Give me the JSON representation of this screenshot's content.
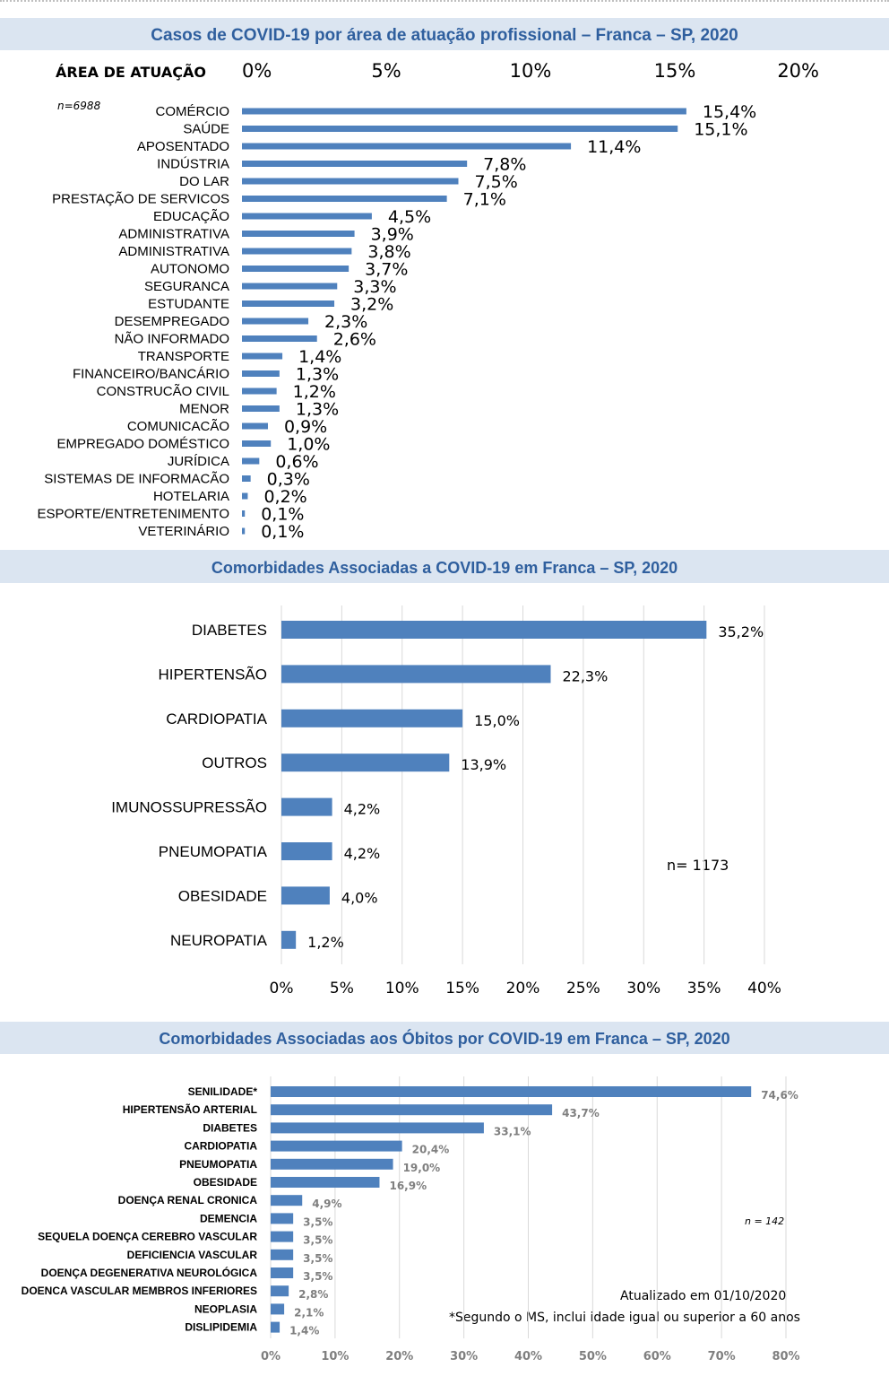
{
  "sections": {
    "professions_title": "Casos de COVID-19 por área de atuação profissional – Franca – SP, 2020",
    "comorbidities_title": "Comorbidades Associadas a COVID-19 em Franca – SP, 2020",
    "deaths_title": "Comorbidades Associadas aos Óbitos por COVID-19 em Franca – SP, 2020"
  },
  "notes": {
    "professions_axis_header": "ÁREA DE ATUAÇÃO",
    "professions_n": "n=6988",
    "comorbidities_n": "n= 1173",
    "deaths_n": "n = 142",
    "updated": "Atualizado em  01/10/2020",
    "footnote": "*Segundo o MS, inclui idade igual ou superior a 60 anos"
  },
  "colors": {
    "bar": "#4f81bd",
    "band": "#dbe5f1",
    "title": "#2f5f9e",
    "grid": "#d9d9d9",
    "muted": "#7f7f7f"
  },
  "chart_data": [
    {
      "type": "bar",
      "orientation": "horizontal",
      "title": "Casos de COVID-19 por área de atuação profissional – Franca – SP, 2020",
      "axis_position": "top",
      "xlim": [
        0,
        20
      ],
      "ticks": [
        "0%",
        "5%",
        "10%",
        "15%",
        "20%"
      ],
      "grid": false,
      "categories": [
        "COMÉRCIO",
        "SAÚDE",
        "APOSENTADO",
        "INDÚSTRIA",
        "DO LAR",
        "PRESTAÇÃO DE SERVICOS",
        "EDUCAÇÃO",
        "ADMINISTRATIVA",
        "ADMINISTRATIVA",
        "AUTONOMO",
        "SEGURANCA",
        "ESTUDANTE",
        "DESEMPREGADO",
        "NÃO INFORMADO",
        "TRANSPORTE",
        "FINANCEIRO/BANCÁRIO",
        "CONSTRUCÃO CIVIL",
        "MENOR",
        "COMUNICACÃO",
        "EMPREGADO DOMÉSTICO",
        "JURÍDICA",
        "SISTEMAS DE INFORMACÃO",
        "HOTELARIA",
        "ESPORTE/ENTRETENIMENTO",
        "VETERINÁRIO"
      ],
      "values": [
        15.4,
        15.1,
        11.4,
        7.8,
        7.5,
        7.1,
        4.5,
        3.9,
        3.8,
        3.7,
        3.3,
        3.2,
        2.3,
        2.6,
        1.4,
        1.3,
        1.2,
        1.3,
        0.9,
        1.0,
        0.6,
        0.3,
        0.2,
        0.1,
        0.1
      ],
      "labels": [
        "15,4%",
        "15,1%",
        "11,4%",
        "7,8%",
        "7,5%",
        "7,1%",
        "4,5%",
        "3,9%",
        "3,8%",
        "3,7%",
        "3,3%",
        "3,2%",
        "2,3%",
        "2,6%",
        "1,4%",
        "1,3%",
        "1,2%",
        "1,3%",
        "0,9%",
        "1,0%",
        "0,6%",
        "0,3%",
        "0,2%",
        "0,1%",
        "0,1%"
      ]
    },
    {
      "type": "bar",
      "orientation": "horizontal",
      "title": "Comorbidades Associadas a COVID-19 em Franca – SP, 2020",
      "axis_position": "bottom",
      "xlim": [
        0,
        40
      ],
      "ticks": [
        "0%",
        "5%",
        "10%",
        "15%",
        "20%",
        "25%",
        "30%",
        "35%",
        "40%"
      ],
      "grid": true,
      "categories": [
        "DIABETES",
        "HIPERTENSÃO",
        "CARDIOPATIA",
        "OUTROS",
        "IMUNOSSUPRESSÃO",
        "PNEUMOPATIA",
        "OBESIDADE",
        "NEUROPATIA"
      ],
      "values": [
        35.2,
        22.3,
        15.0,
        13.9,
        4.2,
        4.2,
        4.0,
        1.2
      ],
      "labels": [
        "35,2%",
        "22,3%",
        "15,0%",
        "13,9%",
        "4,2%",
        "4,2%",
        "4,0%",
        "1,2%"
      ]
    },
    {
      "type": "bar",
      "orientation": "horizontal",
      "title": "Comorbidades Associadas aos Óbitos por COVID-19 em Franca – SP, 2020",
      "axis_position": "bottom",
      "xlim": [
        0,
        80
      ],
      "ticks": [
        "0%",
        "10%",
        "20%",
        "30%",
        "40%",
        "50%",
        "60%",
        "70%",
        "80%"
      ],
      "grid": true,
      "categories": [
        "SENILIDADE*",
        "HIPERTENSÃO ARTERIAL",
        "DIABETES",
        "CARDIOPATIA",
        "PNEUMOPATIA",
        "OBESIDADE",
        "DOENÇA RENAL CRONICA",
        "DEMENCIA",
        "SEQUELA DOENÇA CEREBRO VASCULAR",
        "DEFICIENCIA VASCULAR",
        "DOENÇA DEGENERATIVA NEUROLÓGICA",
        "DOENCA VASCULAR MEMBROS INFERIORES",
        "NEOPLASIA",
        "DISLIPIDEMIA"
      ],
      "values": [
        74.6,
        43.7,
        33.1,
        20.4,
        19.0,
        16.9,
        4.9,
        3.5,
        3.5,
        3.5,
        3.5,
        2.8,
        2.1,
        1.4
      ],
      "labels": [
        "74,6%",
        "43,7%",
        "33,1%",
        "20,4%",
        "19,0%",
        "16,9%",
        "4,9%",
        "3,5%",
        "3,5%",
        "3,5%",
        "3,5%",
        "2,8%",
        "2,1%",
        "1,4%"
      ]
    }
  ]
}
